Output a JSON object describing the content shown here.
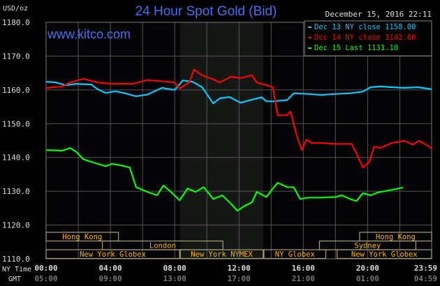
{
  "chart_data": {
    "type": "line",
    "title": "24 Hour Spot Gold (Bid)",
    "ylabel": "USD/oz",
    "watermark": "www.kitco.com",
    "timestamp": "December 15, 2016 22:11",
    "ylim": [
      1110,
      1180
    ],
    "yticks": [
      "1110.0",
      "1120.0",
      "1130.0",
      "1140.0",
      "1150.0",
      "1160.0",
      "1170.0",
      "1180.0"
    ],
    "xlim_hours": [
      0,
      23.98
    ],
    "x_row_labels": {
      "ny": "NY Time",
      "gmt": "GMT"
    },
    "xticks": [
      {
        "hour": 0,
        "ny": "00:00",
        "gmt": "05:00"
      },
      {
        "hour": 4,
        "ny": "04:00",
        "gmt": "09:00"
      },
      {
        "hour": 8,
        "ny": "08:00",
        "gmt": "13:00"
      },
      {
        "hour": 12,
        "ny": "12:00",
        "gmt": "17:00"
      },
      {
        "hour": 16,
        "ny": "16:00",
        "gmt": "21:00"
      },
      {
        "hour": 20,
        "ny": "20:00",
        "gmt": "01:00"
      },
      {
        "hour": 23.98,
        "ny": "23:59",
        "gmt": "04:59"
      }
    ],
    "grid": true,
    "grid_interval_hours": 2,
    "shaded_session_hours": [
      8.33,
      13.5
    ],
    "legend_position": "top-right",
    "series": [
      {
        "name": "Dec 13 NY close 1158.00",
        "color": "#00ccff",
        "points": [
          [
            0,
            1162.4
          ],
          [
            0.6,
            1162.2
          ],
          [
            1.2,
            1161.4
          ],
          [
            1.9,
            1161.8
          ],
          [
            2.8,
            1161.6
          ],
          [
            3.2,
            1160.2
          ],
          [
            3.7,
            1159.1
          ],
          [
            4.3,
            1159.6
          ],
          [
            4.9,
            1159.0
          ],
          [
            5.6,
            1158.1
          ],
          [
            6.3,
            1158.6
          ],
          [
            7.2,
            1160.6
          ],
          [
            8.0,
            1160.0
          ],
          [
            8.5,
            1162.8
          ],
          [
            9.1,
            1162.4
          ],
          [
            9.7,
            1160.8
          ],
          [
            10.4,
            1156.0
          ],
          [
            10.8,
            1157.5
          ],
          [
            11.4,
            1157.9
          ],
          [
            12.1,
            1156.2
          ],
          [
            12.8,
            1157.1
          ],
          [
            13.4,
            1157.8
          ],
          [
            13.7,
            1156.6
          ],
          [
            14.1,
            1156.6
          ],
          [
            15.0,
            1157.0
          ],
          [
            15.4,
            1159.0
          ],
          [
            16.3,
            1158.8
          ],
          [
            17.1,
            1158.5
          ],
          [
            18.0,
            1158.8
          ],
          [
            18.9,
            1159.0
          ],
          [
            19.7,
            1159.5
          ],
          [
            20.2,
            1160.8
          ],
          [
            20.8,
            1161.0
          ],
          [
            21.5,
            1160.8
          ],
          [
            22.3,
            1160.6
          ],
          [
            23.1,
            1160.8
          ],
          [
            23.98,
            1160.2
          ]
        ]
      },
      {
        "name": "Dec 14 NY close 1142.60",
        "color": "#ff0000",
        "points": [
          [
            0,
            1160.6
          ],
          [
            1.0,
            1161.0
          ],
          [
            1.5,
            1162.2
          ],
          [
            2.3,
            1163.3
          ],
          [
            3.2,
            1162.2
          ],
          [
            4.1,
            1161.8
          ],
          [
            5.4,
            1161.8
          ],
          [
            6.3,
            1162.9
          ],
          [
            7.1,
            1162.6
          ],
          [
            8.0,
            1162.2
          ],
          [
            8.3,
            1160.4
          ],
          [
            8.9,
            1162.2
          ],
          [
            9.2,
            1166.0
          ],
          [
            9.7,
            1164.3
          ],
          [
            10.4,
            1163.1
          ],
          [
            10.8,
            1162.2
          ],
          [
            11.5,
            1163.9
          ],
          [
            12.1,
            1163.5
          ],
          [
            12.8,
            1164.3
          ],
          [
            13.1,
            1162.2
          ],
          [
            13.7,
            1161.4
          ],
          [
            14.1,
            1160.8
          ],
          [
            14.4,
            1152.5
          ],
          [
            14.96,
            1152.5
          ],
          [
            15.2,
            1153.6
          ],
          [
            15.6,
            1146.3
          ],
          [
            15.9,
            1142.2
          ],
          [
            16.2,
            1145.3
          ],
          [
            16.5,
            1144.3
          ],
          [
            17.1,
            1144.3
          ],
          [
            18.0,
            1144.0
          ],
          [
            19.0,
            1144.0
          ],
          [
            19.3,
            1141.2
          ],
          [
            19.7,
            1137.0
          ],
          [
            20.1,
            1138.7
          ],
          [
            20.4,
            1143.2
          ],
          [
            20.8,
            1142.8
          ],
          [
            21.5,
            1144.3
          ],
          [
            22.3,
            1144.9
          ],
          [
            22.8,
            1143.8
          ],
          [
            23.2,
            1144.9
          ],
          [
            23.7,
            1143.6
          ],
          [
            23.98,
            1142.6
          ]
        ]
      },
      {
        "name": "Dec 15 Last 1131.10",
        "color": "#00ff00",
        "points": [
          [
            0,
            1142.2
          ],
          [
            1.0,
            1142.0
          ],
          [
            1.5,
            1142.8
          ],
          [
            1.9,
            1141.6
          ],
          [
            2.3,
            1139.5
          ],
          [
            2.8,
            1138.7
          ],
          [
            3.7,
            1137.4
          ],
          [
            4.1,
            1138.1
          ],
          [
            4.7,
            1137.6
          ],
          [
            5.2,
            1137.0
          ],
          [
            5.6,
            1131.2
          ],
          [
            6.3,
            1129.8
          ],
          [
            6.9,
            1128.8
          ],
          [
            7.3,
            1131.7
          ],
          [
            7.9,
            1129.2
          ],
          [
            8.3,
            1127.3
          ],
          [
            8.8,
            1130.8
          ],
          [
            9.3,
            1129.8
          ],
          [
            9.8,
            1131.2
          ],
          [
            10.4,
            1127.7
          ],
          [
            10.96,
            1128.8
          ],
          [
            11.5,
            1126.3
          ],
          [
            11.9,
            1124.2
          ],
          [
            12.3,
            1125.5
          ],
          [
            12.8,
            1126.7
          ],
          [
            13.1,
            1129.8
          ],
          [
            13.7,
            1128.3
          ],
          [
            14.1,
            1130.8
          ],
          [
            14.4,
            1132.5
          ],
          [
            15.0,
            1131.2
          ],
          [
            15.4,
            1131.2
          ],
          [
            15.8,
            1127.7
          ],
          [
            16.3,
            1128.1
          ],
          [
            17.1,
            1128.1
          ],
          [
            18.0,
            1128.3
          ],
          [
            18.4,
            1128.8
          ],
          [
            18.9,
            1127.7
          ],
          [
            19.3,
            1127.1
          ],
          [
            19.7,
            1129.4
          ],
          [
            20.2,
            1128.8
          ],
          [
            20.6,
            1129.6
          ],
          [
            21.5,
            1130.4
          ],
          [
            22.2,
            1131.1
          ]
        ]
      }
    ],
    "sessions": [
      {
        "label": "Hong Kong",
        "row": 0,
        "start": 0,
        "end": 4.5
      },
      {
        "label": "Hong Kong",
        "row": 0,
        "start": 19.5,
        "end": 23.98
      },
      {
        "label": "London",
        "row": 1,
        "start": 3.5,
        "end": 11.0
      },
      {
        "label": "Sydney",
        "row": 1,
        "start": 17.0,
        "end": 23.0
      },
      {
        "label": "New York Globex",
        "row": 2,
        "start": 0,
        "end": 8.3
      },
      {
        "label": "New York NYMEX",
        "row": 2,
        "start": 8.35,
        "end": 13.5
      },
      {
        "label": "NY Globex",
        "row": 2,
        "start": 13.55,
        "end": 17.4
      },
      {
        "label": "New York Globex",
        "row": 2,
        "start": 18.1,
        "end": 23.98
      }
    ],
    "colors": {
      "title": "#4a6ff0",
      "grid": "#555555",
      "session_text": "#ffb400",
      "session_border": "#a8a070",
      "gmt_text": "#777777",
      "axis_text": "#dddddd"
    }
  }
}
